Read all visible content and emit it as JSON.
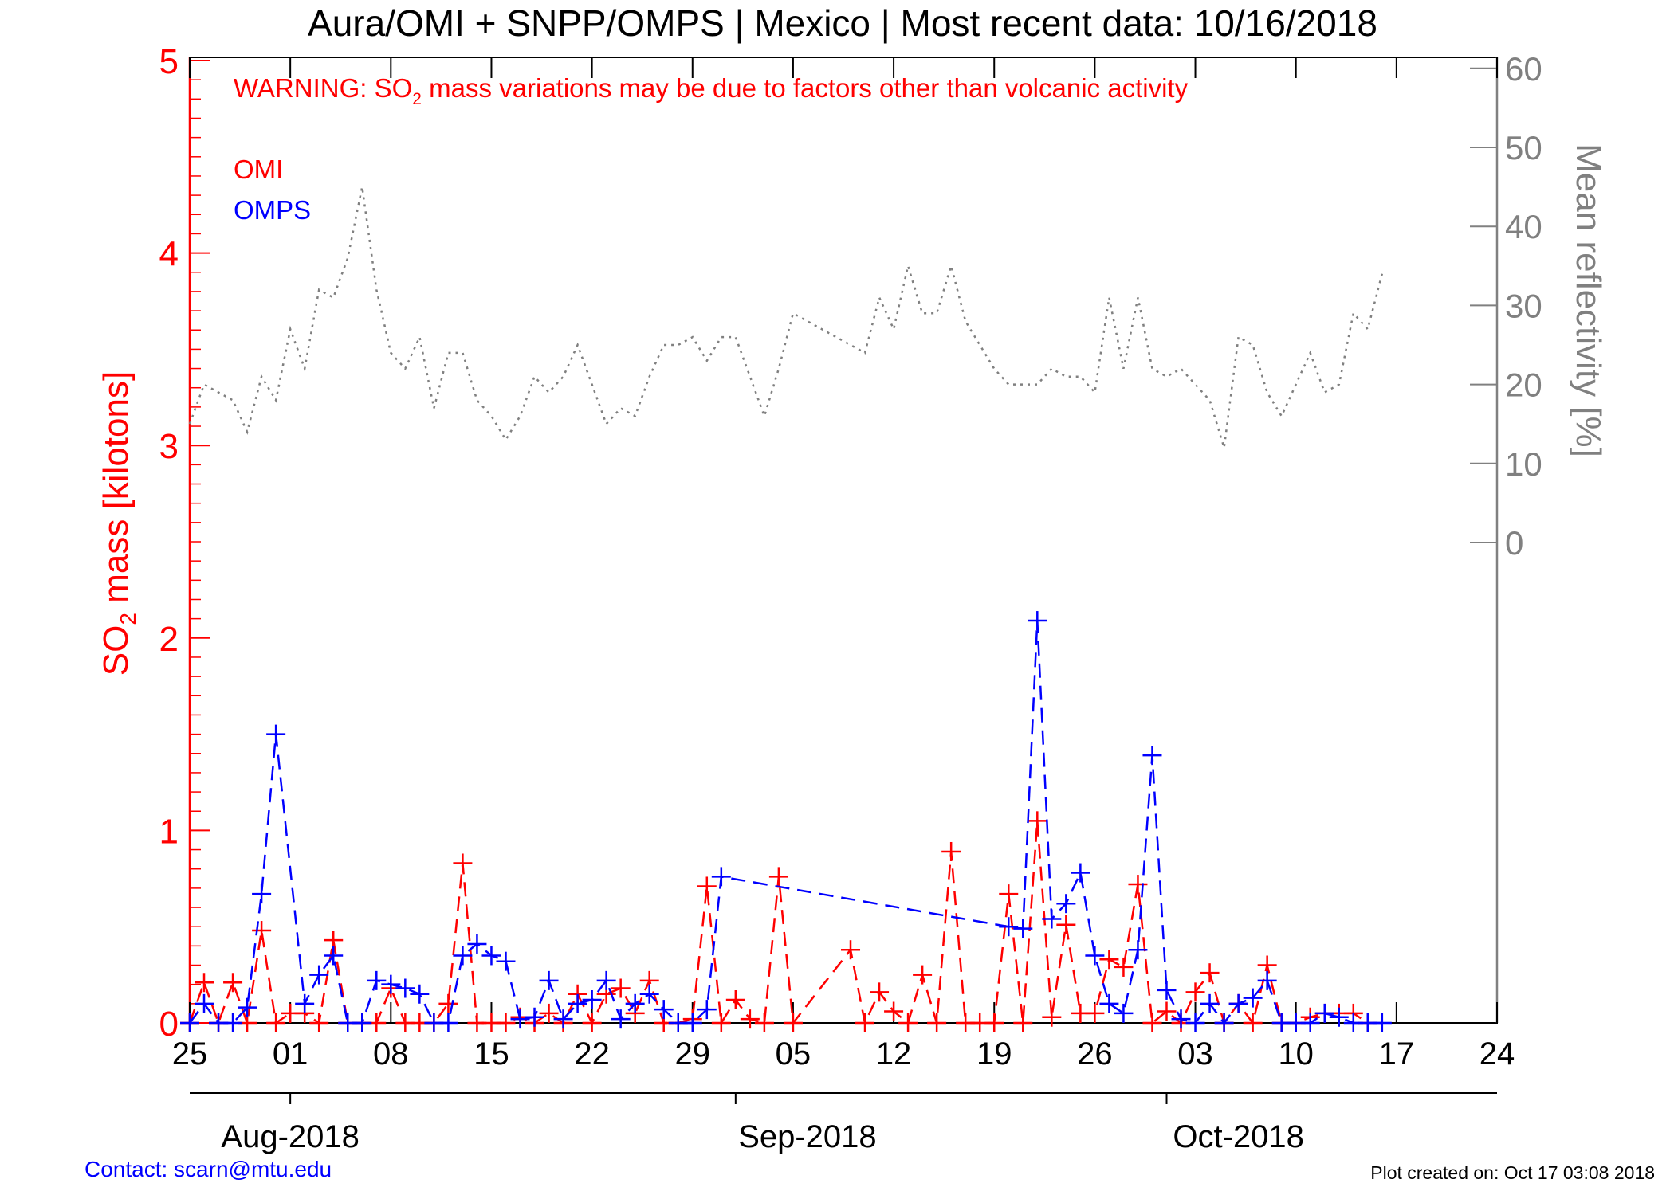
{
  "chart_data": {
    "type": "line",
    "title": "Aura/OMI + SNPP/OMPS | Mexico | Most recent data: 10/16/2018",
    "warning": {
      "prefix": "WARNING: SO",
      "subscript": "2",
      "suffix": " mass variations may be due to factors other than volcanic activity"
    },
    "ylabel_left": {
      "prefix": "SO",
      "subscript": "2",
      "suffix": " mass [kilotons]"
    },
    "ylabel_right": "Mean reflectivity [%]",
    "ylim_left": [
      0,
      5
    ],
    "yticks_left": [
      "0",
      "1",
      "2",
      "3",
      "4",
      "5"
    ],
    "ylim_right_ticks": [
      "0",
      "10",
      "20",
      "30",
      "40",
      "50",
      "60"
    ],
    "x_day_ticks": [
      "25",
      "01",
      "08",
      "15",
      "22",
      "29",
      "05",
      "12",
      "19",
      "26",
      "03",
      "10",
      "17",
      "24"
    ],
    "x_month_labels": [
      "Aug-2018",
      "Sep-2018",
      "Oct-2018"
    ],
    "legend": [
      {
        "name": "OMI",
        "color": "#ff0000"
      },
      {
        "name": "OMPS",
        "color": "#0000ff"
      }
    ],
    "colors": {
      "left_axis": "#ff0000",
      "right_axis": "#808080",
      "omi": "#ff0000",
      "omps": "#0000ff",
      "reflectivity": "#808080"
    },
    "series": [
      {
        "name": "OMI",
        "x": [
          "2018-07-25",
          "2018-07-26",
          "2018-07-27",
          "2018-07-28",
          "2018-07-29",
          "2018-07-30",
          "2018-07-31",
          "2018-08-01",
          "2018-08-02",
          "2018-08-03",
          "2018-08-04",
          "2018-08-05",
          "2018-08-06",
          "2018-08-07",
          "2018-08-08",
          "2018-08-09",
          "2018-08-10",
          "2018-08-11",
          "2018-08-12",
          "2018-08-13",
          "2018-08-14",
          "2018-08-15",
          "2018-08-16",
          "2018-08-17",
          "2018-08-18",
          "2018-08-19",
          "2018-08-20",
          "2018-08-21",
          "2018-08-22",
          "2018-08-23",
          "2018-08-24",
          "2018-08-25",
          "2018-08-26",
          "2018-08-27",
          "2018-08-28",
          "2018-08-29",
          "2018-08-30",
          "2018-08-31",
          "2018-09-01",
          "2018-09-02",
          "2018-09-03",
          "2018-09-04",
          "2018-09-05",
          "2018-09-09",
          "2018-09-10",
          "2018-09-11",
          "2018-09-12",
          "2018-09-13",
          "2018-09-14",
          "2018-09-15",
          "2018-09-16",
          "2018-09-17",
          "2018-09-18",
          "2018-09-19",
          "2018-09-20",
          "2018-09-21",
          "2018-09-22",
          "2018-09-23",
          "2018-09-24",
          "2018-09-25",
          "2018-09-26",
          "2018-09-27",
          "2018-09-28",
          "2018-09-29",
          "2018-09-30",
          "2018-10-01",
          "2018-10-02",
          "2018-10-03",
          "2018-10-04",
          "2018-10-05",
          "2018-10-06",
          "2018-10-07",
          "2018-10-08",
          "2018-10-09",
          "2018-10-10",
          "2018-10-11",
          "2018-10-12",
          "2018-10-13",
          "2018-10-14",
          "2018-10-15"
        ],
        "values": [
          0.0,
          0.21,
          0.0,
          0.21,
          0.0,
          0.48,
          0.0,
          0.05,
          0.05,
          0.0,
          0.43,
          0.0,
          0.0,
          0.0,
          0.18,
          0.0,
          0.0,
          0.0,
          0.1,
          0.83,
          0.0,
          0.0,
          0.0,
          0.03,
          0.0,
          0.05,
          0.0,
          0.15,
          0.0,
          0.15,
          0.18,
          0.05,
          0.22,
          0.0,
          0.0,
          0.02,
          0.71,
          0.0,
          0.12,
          0.02,
          0.0,
          0.76,
          0.0,
          0.38,
          0.0,
          0.16,
          0.06,
          0.0,
          0.25,
          0.0,
          0.89,
          0.0,
          0.0,
          0.0,
          0.67,
          0.0,
          1.05,
          0.03,
          0.51,
          0.05,
          0.05,
          0.33,
          0.29,
          0.72,
          0.0,
          0.06,
          0.0,
          0.16,
          0.26,
          0.0,
          0.1,
          0.0,
          0.3,
          0.0,
          0.0,
          0.03,
          0.05,
          0.05,
          0.05,
          0.0
        ],
        "visible_points_count": 80
      },
      {
        "name": "OMPS",
        "x": [
          "2018-07-25",
          "2018-07-26",
          "2018-07-27",
          "2018-07-28",
          "2018-07-29",
          "2018-07-30",
          "2018-07-31",
          "2018-08-02",
          "2018-08-03",
          "2018-08-04",
          "2018-08-05",
          "2018-08-06",
          "2018-08-07",
          "2018-08-08",
          "2018-08-09",
          "2018-08-10",
          "2018-08-11",
          "2018-08-12",
          "2018-08-13",
          "2018-08-14",
          "2018-08-15",
          "2018-08-16",
          "2018-08-17",
          "2018-08-18",
          "2018-08-19",
          "2018-08-20",
          "2018-08-21",
          "2018-08-22",
          "2018-08-23",
          "2018-08-24",
          "2018-08-25",
          "2018-08-26",
          "2018-08-27",
          "2018-08-28",
          "2018-08-29",
          "2018-08-30",
          "2018-08-31",
          "2018-09-20",
          "2018-09-21",
          "2018-09-22",
          "2018-09-23",
          "2018-09-24",
          "2018-09-25",
          "2018-09-26",
          "2018-09-27",
          "2018-09-28",
          "2018-09-29",
          "2018-09-30",
          "2018-10-01",
          "2018-10-02",
          "2018-10-03",
          "2018-10-04",
          "2018-10-05",
          "2018-10-06",
          "2018-10-07",
          "2018-10-08",
          "2018-10-09",
          "2018-10-10",
          "2018-10-11",
          "2018-10-12",
          "2018-10-13",
          "2018-10-14",
          "2018-10-15",
          "2018-10-16"
        ],
        "values": [
          0.0,
          0.1,
          0.0,
          0.0,
          0.08,
          0.67,
          1.5,
          0.1,
          0.25,
          0.35,
          0.0,
          0.0,
          0.22,
          0.2,
          0.18,
          0.15,
          0.0,
          0.0,
          0.35,
          0.41,
          0.35,
          0.32,
          0.02,
          0.03,
          0.22,
          0.02,
          0.1,
          0.12,
          0.22,
          0.02,
          0.1,
          0.15,
          0.07,
          0.0,
          0.0,
          0.07,
          0.76,
          0.5,
          0.49,
          2.09,
          0.54,
          0.62,
          0.78,
          0.35,
          0.1,
          0.05,
          0.38,
          1.39,
          0.17,
          0.02,
          0.0,
          0.1,
          0.0,
          0.1,
          0.13,
          0.22,
          0.0,
          0.0,
          0.0,
          0.05,
          0.03,
          0.0,
          0.0,
          0.0
        ]
      },
      {
        "name": "",
        "axis": "right",
        "style": "dotted",
        "x": [
          "2018-07-25",
          "2018-07-26",
          "2018-07-27",
          "2018-07-28",
          "2018-07-29",
          "2018-07-30",
          "2018-07-31",
          "2018-08-01",
          "2018-08-02",
          "2018-08-03",
          "2018-08-04",
          "2018-08-05",
          "2018-08-06",
          "2018-08-07",
          "2018-08-08",
          "2018-08-09",
          "2018-08-10",
          "2018-08-11",
          "2018-08-12",
          "2018-08-13",
          "2018-08-14",
          "2018-08-15",
          "2018-08-16",
          "2018-08-17",
          "2018-08-18",
          "2018-08-19",
          "2018-08-20",
          "2018-08-21",
          "2018-08-22",
          "2018-08-23",
          "2018-08-24",
          "2018-08-25",
          "2018-08-26",
          "2018-08-27",
          "2018-08-28",
          "2018-08-29",
          "2018-08-30",
          "2018-08-31",
          "2018-09-01",
          "2018-09-02",
          "2018-09-03",
          "2018-09-04",
          "2018-09-05",
          "2018-09-06",
          "2018-09-07",
          "2018-09-08",
          "2018-09-09",
          "2018-09-10",
          "2018-09-11",
          "2018-09-12",
          "2018-09-13",
          "2018-09-14",
          "2018-09-15",
          "2018-09-16",
          "2018-09-17",
          "2018-09-18",
          "2018-09-19",
          "2018-09-20",
          "2018-09-21",
          "2018-09-22",
          "2018-09-23",
          "2018-09-24",
          "2018-09-25",
          "2018-09-26",
          "2018-09-27",
          "2018-09-28",
          "2018-09-29",
          "2018-09-30",
          "2018-10-01",
          "2018-10-02",
          "2018-10-03",
          "2018-10-04",
          "2018-10-05",
          "2018-10-06",
          "2018-10-07",
          "2018-10-08",
          "2018-10-09",
          "2018-10-10",
          "2018-10-11",
          "2018-10-12",
          "2018-10-13",
          "2018-10-14",
          "2018-10-15",
          "2018-10-16"
        ],
        "values": [
          15,
          20,
          19,
          18,
          14,
          21,
          18,
          27,
          22,
          32,
          31,
          36,
          45,
          32,
          24,
          22,
          26,
          17,
          24,
          24,
          18,
          16,
          13,
          16,
          21,
          19,
          21,
          25,
          20,
          15,
          17,
          16,
          21,
          25,
          25,
          26,
          23,
          26,
          26,
          21,
          16,
          22,
          29,
          28,
          27,
          26,
          25,
          24,
          31,
          27,
          35,
          29,
          29,
          35,
          28,
          25,
          22,
          20,
          20,
          20,
          22,
          21,
          21,
          19,
          31,
          22,
          31,
          22,
          21,
          22,
          20,
          18,
          12,
          26,
          25,
          19,
          16,
          20,
          24,
          19,
          20,
          29,
          27,
          34
        ]
      }
    ],
    "footer_left": "Contact: scarn@mtu.edu",
    "footer_right": "Plot created on: Oct 17 03:08 2018"
  }
}
